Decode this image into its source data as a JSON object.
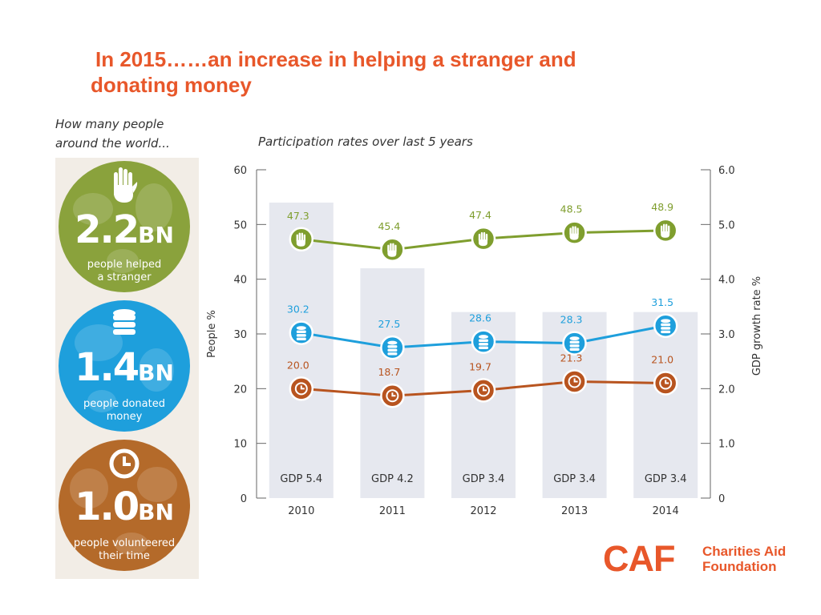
{
  "header": {
    "title_line1": "In 2015……an increase in helping a stranger and",
    "title_line2": "donating money"
  },
  "intro": {
    "line1": "How many people",
    "line2": "around the world..."
  },
  "stats": [
    {
      "number": "2.2",
      "unit": "BN",
      "caption_line1": "people helped",
      "caption_line2": "a stranger",
      "color": "#8aa23c",
      "icon": "raised-hand-icon"
    },
    {
      "number": "1.4",
      "unit": "BN",
      "caption_line1": "people donated",
      "caption_line2": "money",
      "color": "#1e9fdc",
      "icon": "coin-stack-icon"
    },
    {
      "number": "1.0",
      "unit": "BN",
      "caption_line1": "people volunteered",
      "caption_line2": "their time",
      "color": "#b46a2a",
      "icon": "clock-icon"
    }
  ],
  "chart_data": {
    "type": "line",
    "title": "Participation rates over last 5 years",
    "categories": [
      "2010",
      "2011",
      "2012",
      "2013",
      "2014"
    ],
    "ylabel": "People %",
    "y2label": "GDP growth rate %",
    "ylim": [
      0,
      60
    ],
    "y2lim": [
      0,
      6.0
    ],
    "yticks": [
      "0",
      "10",
      "20",
      "30",
      "40",
      "50",
      "60"
    ],
    "y2ticks": [
      "0",
      "1.0",
      "2.0",
      "3.0",
      "4.0",
      "5.0",
      "6.0"
    ],
    "grid": false,
    "bars": {
      "axis": "secondary",
      "values": [
        5.4,
        4.2,
        3.4,
        3.4,
        3.4
      ],
      "labels": [
        "GDP 5.4",
        "GDP 4.2",
        "GDP 3.4",
        "GDP 3.4",
        "GDP 3.4"
      ],
      "color": "#e6e8ef"
    },
    "series": [
      {
        "values": [
          47.3,
          45.4,
          47.4,
          48.5,
          48.9
        ],
        "labels": [
          "47.3",
          "45.4",
          "47.4",
          "48.5",
          "48.9"
        ],
        "color": "#7f9e2e",
        "icon": "raised-hand-icon"
      },
      {
        "values": [
          30.2,
          27.5,
          28.6,
          28.3,
          31.5
        ],
        "labels": [
          "30.2",
          "27.5",
          "28.6",
          "28.3",
          "31.5"
        ],
        "color": "#1e9fdc",
        "icon": "coin-stack-icon"
      },
      {
        "values": [
          20.0,
          18.7,
          19.7,
          21.3,
          21.0
        ],
        "labels": [
          "20.0",
          "18.7",
          "19.7",
          "21.3",
          "21.0"
        ],
        "color": "#b8541f",
        "icon": "clock-icon"
      }
    ]
  },
  "logo": {
    "mark": "CAF",
    "name_line1": "Charities Aid",
    "name_line2": "Foundation"
  }
}
